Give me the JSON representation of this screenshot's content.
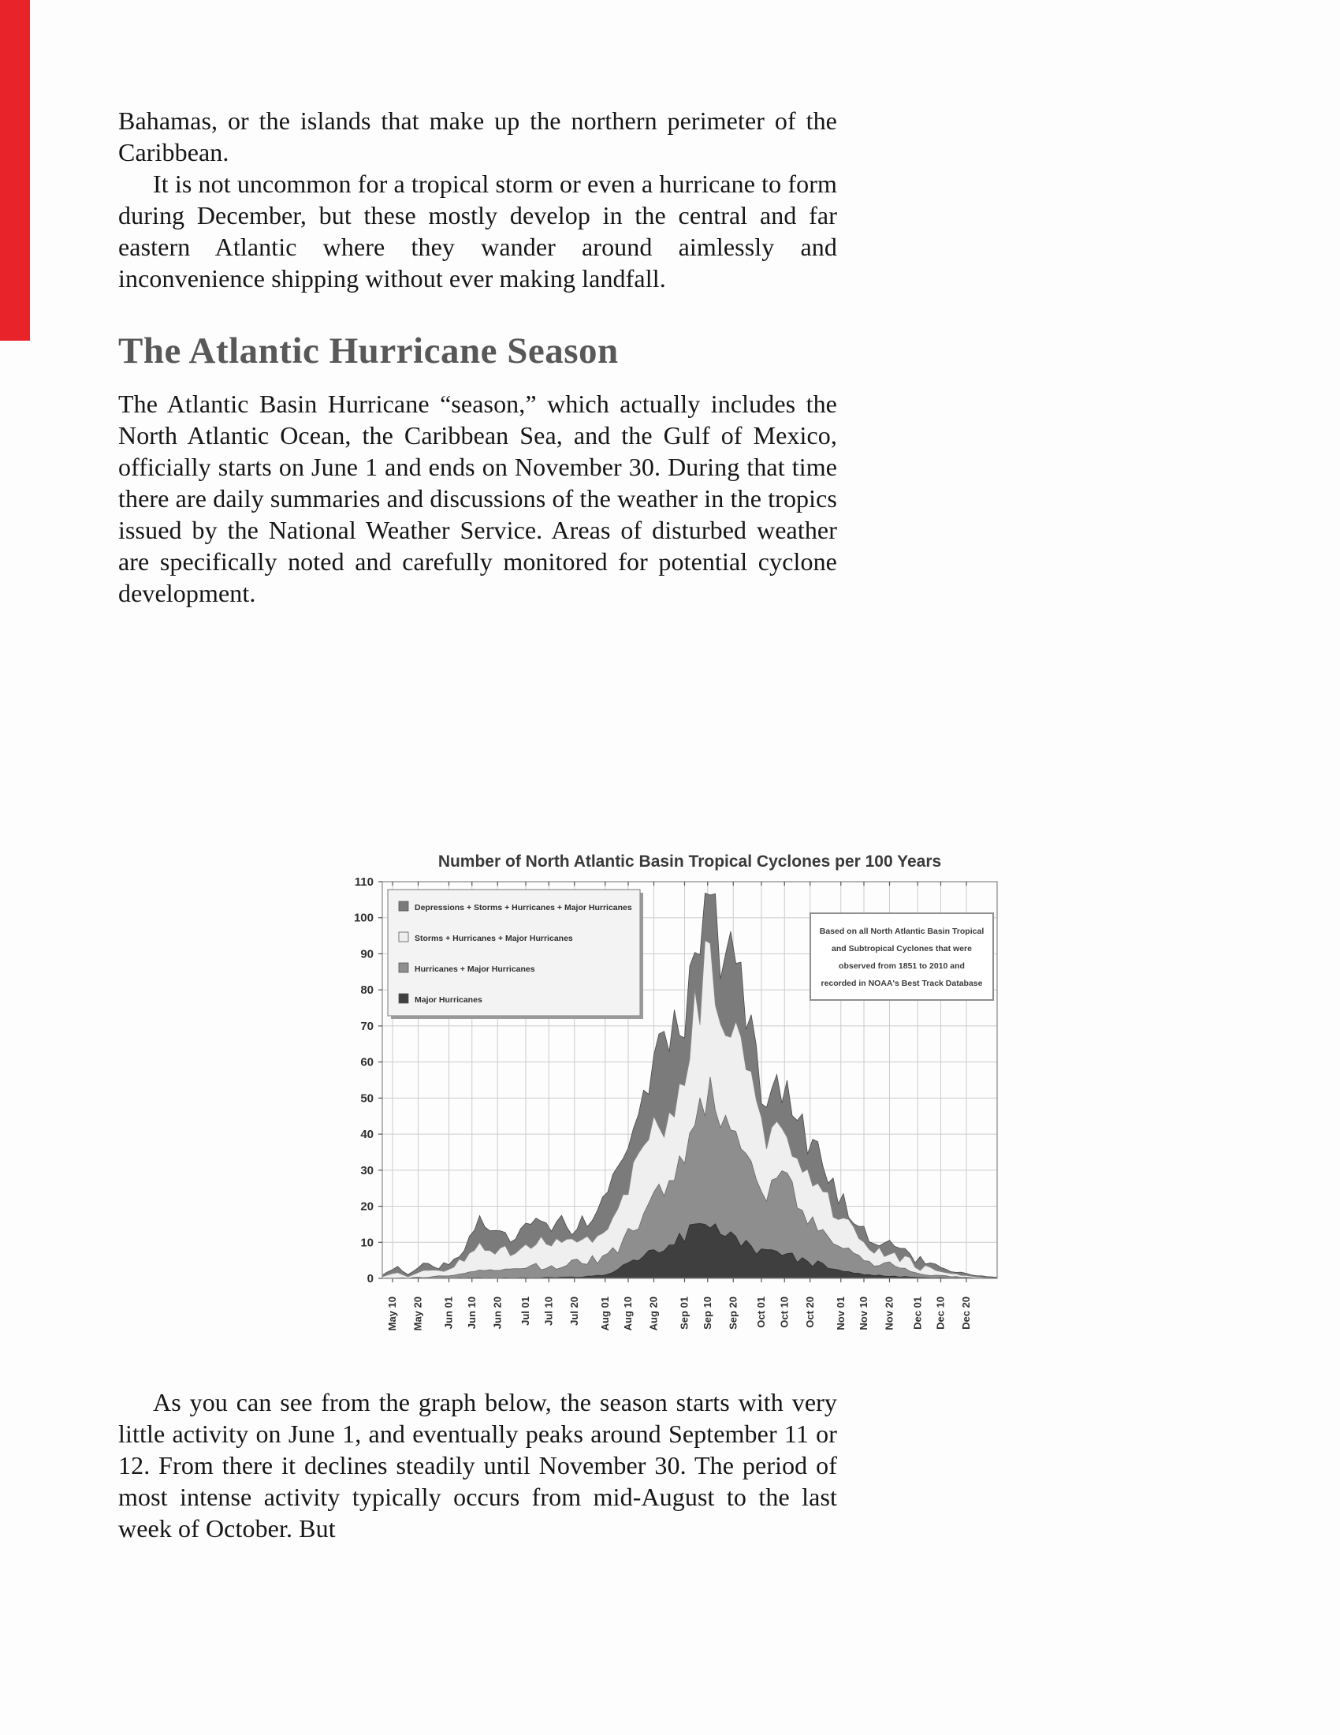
{
  "page": {
    "background": "#fdfdfd",
    "ribbon_color": "#e8232a",
    "heading_color": "#585858"
  },
  "article": {
    "paragraph1": "Bahamas, or the islands that make up the northern perimeter of the Caribbean.",
    "paragraph2": "It is not uncommon for a tropical storm or even a hurricane to form during December, but these mostly develop in the central and far eastern Atlantic where they wander around aimlessly and inconvenience shipping without ever making landfall.",
    "heading": "The Atlantic Hurricane Season",
    "paragraph3": "The Atlantic Basin Hurricane “season,” which actually includes the North Atlantic Ocean, the Caribbean Sea, and the Gulf of Mexico, officially starts on June 1 and ends on November 30. During that time there are daily summaries and discussions of the weather in the tropics issued by the National Weather Service. Areas of disturbed weather are specifically noted and carefully monitored for potential cyclone development.",
    "paragraph4": "As you can see from the graph below, the season starts with very little activity on June 1, and eventually peaks around September 11 or 12. From there it declines steadily until November 30. The period of most intense activity typically occurs from mid-August to the last week of October. But"
  },
  "chart_data": {
    "type": "area",
    "title": "Number of North Atlantic Basin Tropical Cyclones per 100 Years",
    "ylabel": "",
    "xlabel": "",
    "ylim": [
      0,
      110
    ],
    "y_ticks": [
      0,
      10,
      20,
      30,
      40,
      50,
      60,
      70,
      80,
      90,
      100,
      110
    ],
    "grid": true,
    "legend_position": "top-left",
    "x_domain_days": [
      0,
      240
    ],
    "x_note": "day 0 = May 6; values are cyclone counts per 100 years (1851-2010 climatology)",
    "x_ticks": [
      {
        "day": 4,
        "label": "May 10"
      },
      {
        "day": 14,
        "label": "May 20"
      },
      {
        "day": 26,
        "label": "Jun 01"
      },
      {
        "day": 35,
        "label": "Jun 10"
      },
      {
        "day": 45,
        "label": "Jun 20"
      },
      {
        "day": 56,
        "label": "Jul 01"
      },
      {
        "day": 65,
        "label": "Jul 10"
      },
      {
        "day": 75,
        "label": "Jul 20"
      },
      {
        "day": 87,
        "label": "Aug 01"
      },
      {
        "day": 96,
        "label": "Aug 10"
      },
      {
        "day": 106,
        "label": "Aug 20"
      },
      {
        "day": 118,
        "label": "Sep 01"
      },
      {
        "day": 127,
        "label": "Sep 10"
      },
      {
        "day": 137,
        "label": "Sep 20"
      },
      {
        "day": 148,
        "label": "Oct 01"
      },
      {
        "day": 157,
        "label": "Oct 10"
      },
      {
        "day": 167,
        "label": "Oct 20"
      },
      {
        "day": 179,
        "label": "Nov 01"
      },
      {
        "day": 188,
        "label": "Nov 10"
      },
      {
        "day": 198,
        "label": "Nov 20"
      },
      {
        "day": 209,
        "label": "Dec 01"
      },
      {
        "day": 218,
        "label": "Dec 10"
      },
      {
        "day": 228,
        "label": "Dec 20"
      }
    ],
    "annotation": {
      "lines": [
        "Based on all North Atlantic Basin Tropical",
        "and Subtropical Cyclones that were",
        "observed from 1851 to 2010 and",
        "recorded in NOAA's Best Track Database"
      ]
    },
    "series": [
      {
        "name": "Depressions + Storms + Hurricanes + Major Hurricanes",
        "color": "#7b7b7b",
        "stroke": "#4a4a4a",
        "points": [
          [
            0,
            1
          ],
          [
            6,
            3
          ],
          [
            10,
            1
          ],
          [
            16,
            4
          ],
          [
            22,
            3
          ],
          [
            26,
            5
          ],
          [
            31,
            8
          ],
          [
            37,
            17
          ],
          [
            41,
            12
          ],
          [
            45,
            15
          ],
          [
            51,
            11
          ],
          [
            56,
            13
          ],
          [
            61,
            15
          ],
          [
            65,
            13
          ],
          [
            69,
            16
          ],
          [
            73,
            14
          ],
          [
            77,
            15
          ],
          [
            83,
            18
          ],
          [
            87,
            23
          ],
          [
            91,
            28
          ],
          [
            95,
            35
          ],
          [
            99,
            42
          ],
          [
            102,
            50
          ],
          [
            106,
            62
          ],
          [
            109,
            64
          ],
          [
            111,
            60
          ],
          [
            115,
            70
          ],
          [
            118,
            75
          ],
          [
            122,
            88
          ],
          [
            124,
            95
          ],
          [
            127,
            106
          ],
          [
            131,
            95
          ],
          [
            134,
            90
          ],
          [
            137,
            92
          ],
          [
            139,
            84
          ],
          [
            143,
            70
          ],
          [
            147,
            55
          ],
          [
            150,
            48
          ],
          [
            155,
            53
          ],
          [
            159,
            50
          ],
          [
            163,
            42
          ],
          [
            167,
            38
          ],
          [
            172,
            32
          ],
          [
            176,
            25
          ],
          [
            181,
            20
          ],
          [
            186,
            15
          ],
          [
            190,
            12
          ],
          [
            194,
            10
          ],
          [
            198,
            9
          ],
          [
            200,
            10
          ],
          [
            204,
            7
          ],
          [
            209,
            5
          ],
          [
            213,
            4
          ],
          [
            218,
            3
          ],
          [
            222,
            2
          ],
          [
            226,
            1.5
          ],
          [
            230,
            1
          ],
          [
            235,
            0.5
          ],
          [
            240,
            0.3
          ]
        ]
      },
      {
        "name": "Storms + Hurricanes + Major Hurricanes",
        "color": "#efefef",
        "stroke": "#8a8a8a",
        "points": [
          [
            0,
            0.5
          ],
          [
            6,
            1.5
          ],
          [
            10,
            0.5
          ],
          [
            16,
            2
          ],
          [
            26,
            3.5
          ],
          [
            31,
            5
          ],
          [
            37,
            9
          ],
          [
            41,
            7
          ],
          [
            45,
            8
          ],
          [
            51,
            7
          ],
          [
            56,
            9
          ],
          [
            61,
            10
          ],
          [
            65,
            9
          ],
          [
            69,
            10
          ],
          [
            73,
            9
          ],
          [
            77,
            10
          ],
          [
            83,
            12
          ],
          [
            87,
            15
          ],
          [
            91,
            19
          ],
          [
            95,
            24
          ],
          [
            99,
            30
          ],
          [
            102,
            36
          ],
          [
            106,
            45
          ],
          [
            111,
            44
          ],
          [
            115,
            52
          ],
          [
            118,
            60
          ],
          [
            122,
            72
          ],
          [
            127,
            90
          ],
          [
            131,
            80
          ],
          [
            134,
            74
          ],
          [
            137,
            76
          ],
          [
            139,
            68
          ],
          [
            143,
            56
          ],
          [
            147,
            44
          ],
          [
            150,
            38
          ],
          [
            155,
            42
          ],
          [
            159,
            40
          ],
          [
            163,
            33
          ],
          [
            167,
            29
          ],
          [
            172,
            24
          ],
          [
            176,
            19
          ],
          [
            181,
            15
          ],
          [
            186,
            11
          ],
          [
            190,
            9
          ],
          [
            194,
            7.5
          ],
          [
            198,
            7
          ],
          [
            200,
            7.5
          ],
          [
            204,
            5
          ],
          [
            209,
            3.5
          ],
          [
            213,
            3
          ],
          [
            218,
            2
          ],
          [
            222,
            1.5
          ],
          [
            226,
            1
          ],
          [
            230,
            0.8
          ],
          [
            235,
            0.3
          ],
          [
            240,
            0.2
          ]
        ]
      },
      {
        "name": "Hurricanes + Major Hurricanes",
        "color": "#8e8e8e",
        "stroke": "#696969",
        "points": [
          [
            0,
            0
          ],
          [
            16,
            0.3
          ],
          [
            26,
            0.8
          ],
          [
            37,
            2
          ],
          [
            45,
            2.5
          ],
          [
            56,
            3
          ],
          [
            65,
            3.5
          ],
          [
            73,
            4
          ],
          [
            83,
            5
          ],
          [
            87,
            6
          ],
          [
            91,
            8
          ],
          [
            95,
            11
          ],
          [
            99,
            15
          ],
          [
            102,
            18
          ],
          [
            106,
            24
          ],
          [
            111,
            26
          ],
          [
            115,
            31
          ],
          [
            118,
            36
          ],
          [
            122,
            44
          ],
          [
            127,
            52
          ],
          [
            131,
            47
          ],
          [
            134,
            43
          ],
          [
            137,
            44
          ],
          [
            139,
            39
          ],
          [
            143,
            32
          ],
          [
            147,
            26
          ],
          [
            150,
            24
          ],
          [
            155,
            28
          ],
          [
            159,
            26
          ],
          [
            163,
            20
          ],
          [
            167,
            17
          ],
          [
            172,
            13
          ],
          [
            176,
            10
          ],
          [
            181,
            8
          ],
          [
            186,
            6
          ],
          [
            190,
            5
          ],
          [
            194,
            4
          ],
          [
            198,
            3.5
          ],
          [
            204,
            2.5
          ],
          [
            209,
            1.5
          ],
          [
            213,
            1
          ],
          [
            218,
            0.7
          ],
          [
            226,
            0.4
          ],
          [
            235,
            0.1
          ],
          [
            240,
            0
          ]
        ]
      },
      {
        "name": "Major Hurricanes",
        "color": "#3f3f3f",
        "stroke": "#2c2c2c",
        "points": [
          [
            0,
            0
          ],
          [
            56,
            0.1
          ],
          [
            73,
            0.3
          ],
          [
            83,
            0.6
          ],
          [
            87,
            1
          ],
          [
            91,
            2
          ],
          [
            95,
            3.5
          ],
          [
            99,
            5
          ],
          [
            102,
            6.5
          ],
          [
            106,
            8
          ],
          [
            111,
            9
          ],
          [
            115,
            10.5
          ],
          [
            118,
            12
          ],
          [
            122,
            14
          ],
          [
            127,
            17
          ],
          [
            131,
            14
          ],
          [
            134,
            12.5
          ],
          [
            137,
            13
          ],
          [
            139,
            11
          ],
          [
            143,
            9
          ],
          [
            147,
            7
          ],
          [
            150,
            6.5
          ],
          [
            155,
            8
          ],
          [
            159,
            7
          ],
          [
            163,
            5.5
          ],
          [
            167,
            4.5
          ],
          [
            172,
            3.5
          ],
          [
            176,
            2.5
          ],
          [
            181,
            2
          ],
          [
            186,
            1.3
          ],
          [
            190,
            1
          ],
          [
            194,
            0.8
          ],
          [
            198,
            0.6
          ],
          [
            204,
            0.4
          ],
          [
            209,
            0.3
          ],
          [
            218,
            0.15
          ],
          [
            228,
            0.05
          ],
          [
            240,
            0
          ]
        ]
      }
    ]
  }
}
